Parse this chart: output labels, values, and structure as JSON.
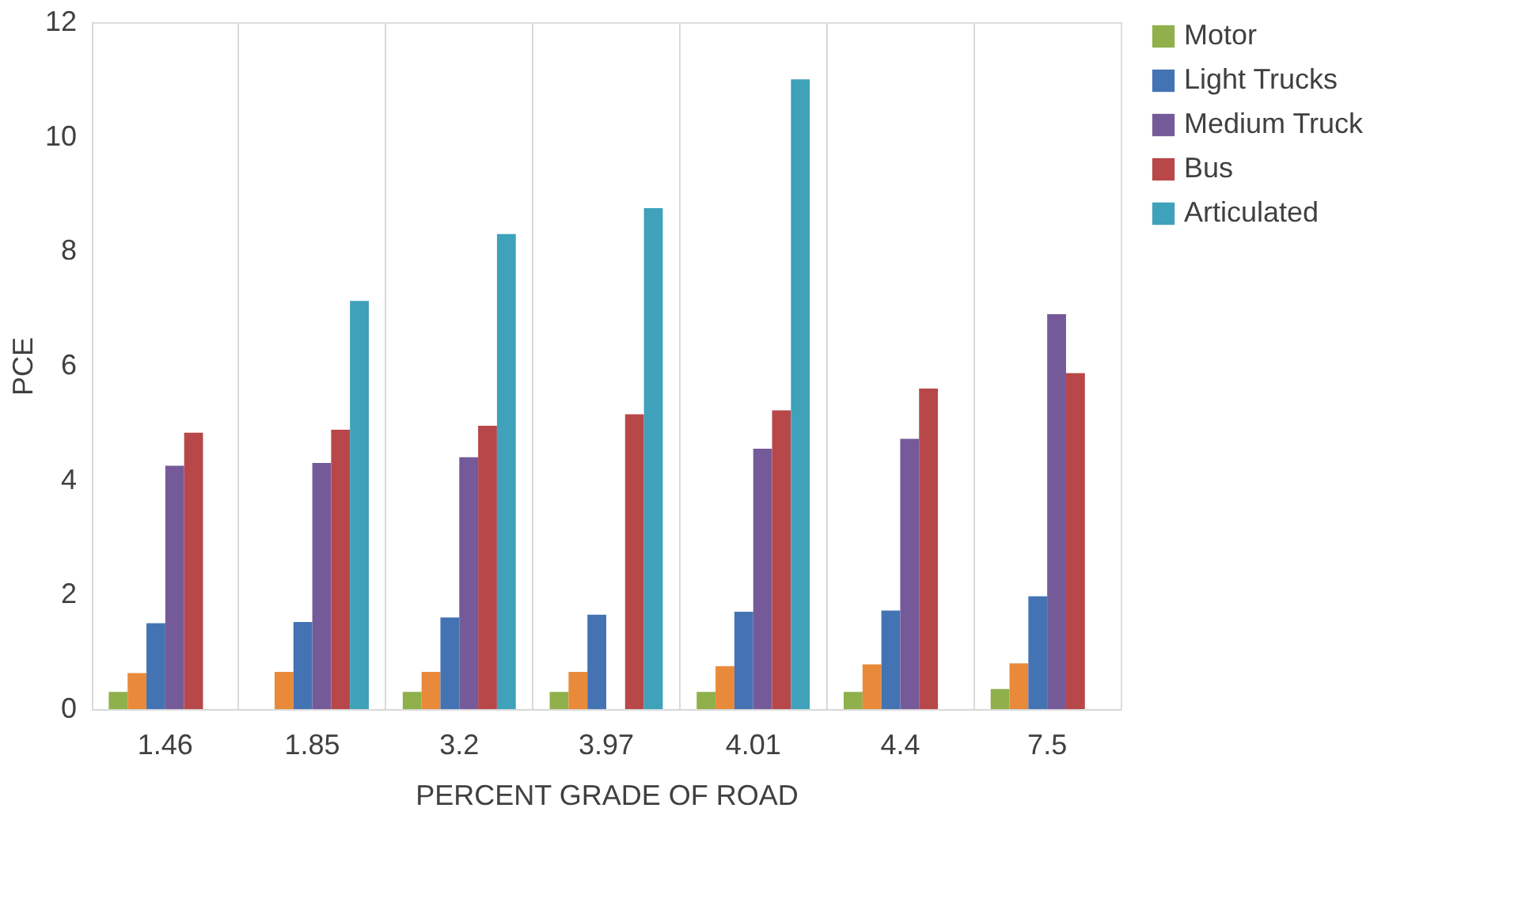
{
  "chart_data": {
    "type": "bar",
    "xlabel": "PERCENT GRADE OF ROAD",
    "ylabel": "PCE",
    "categories": [
      "1.46",
      "1.85",
      "3.2",
      "3.97",
      "4.01",
      "4.4",
      "7.5"
    ],
    "series": [
      {
        "name": "Motor",
        "color": "#8fb04a",
        "values": [
          0.3,
          null,
          0.3,
          0.3,
          0.3,
          0.3,
          0.35
        ]
      },
      {
        "color": "#e98a3a",
        "values": [
          0.63,
          0.65,
          0.65,
          0.65,
          0.75,
          0.78,
          0.8
        ]
      },
      {
        "name": "Light Trucks",
        "color": "#4373b3",
        "values": [
          1.5,
          1.52,
          1.6,
          1.65,
          1.7,
          1.72,
          1.97
        ]
      },
      {
        "name": "Medium Truck",
        "color": "#755a99",
        "values": [
          4.25,
          4.3,
          4.4,
          null,
          4.55,
          4.72,
          6.9
        ]
      },
      {
        "name": "Bus",
        "color": "#b8474a",
        "values": [
          4.83,
          4.88,
          4.95,
          5.15,
          5.22,
          5.6,
          5.87
        ]
      },
      {
        "name": "Articulated",
        "color": "#3fa1ba",
        "values": [
          null,
          7.13,
          8.3,
          8.75,
          11.0,
          null,
          null
        ]
      }
    ],
    "ylim": [
      0,
      12
    ],
    "yticks": [
      0,
      2,
      4,
      6,
      8,
      10,
      12
    ],
    "grid": "x",
    "legend": "right"
  }
}
